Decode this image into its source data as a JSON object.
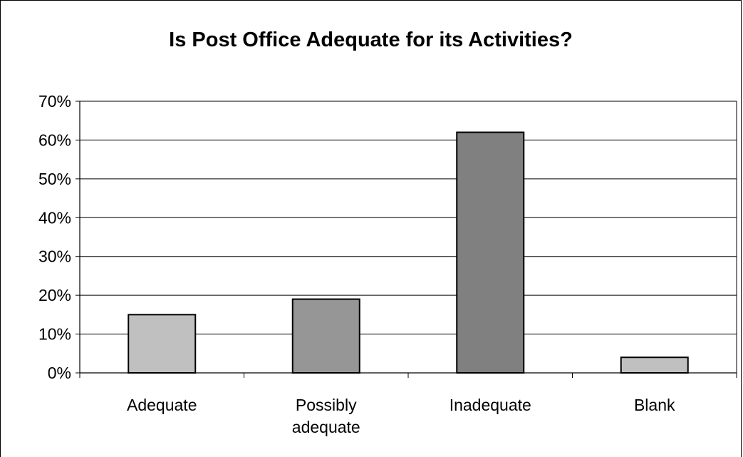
{
  "chart_data": {
    "type": "bar",
    "title": "Is Post Office Adequate for its Activities?",
    "xlabel": "",
    "ylabel": "",
    "categories": [
      [
        "Adequate"
      ],
      [
        "Possibly",
        "adequate"
      ],
      [
        "Inadequate"
      ],
      [
        "Blank"
      ]
    ],
    "values": [
      15,
      19,
      62,
      4
    ],
    "bar_colors": [
      "#c0c0c0",
      "#969696",
      "#808080",
      "#c0c0c0"
    ],
    "ylim": [
      0,
      70
    ],
    "yticks": [
      "0%",
      "10%",
      "20%",
      "30%",
      "40%",
      "50%",
      "60%",
      "70%"
    ],
    "grid": true,
    "legend": "none"
  }
}
